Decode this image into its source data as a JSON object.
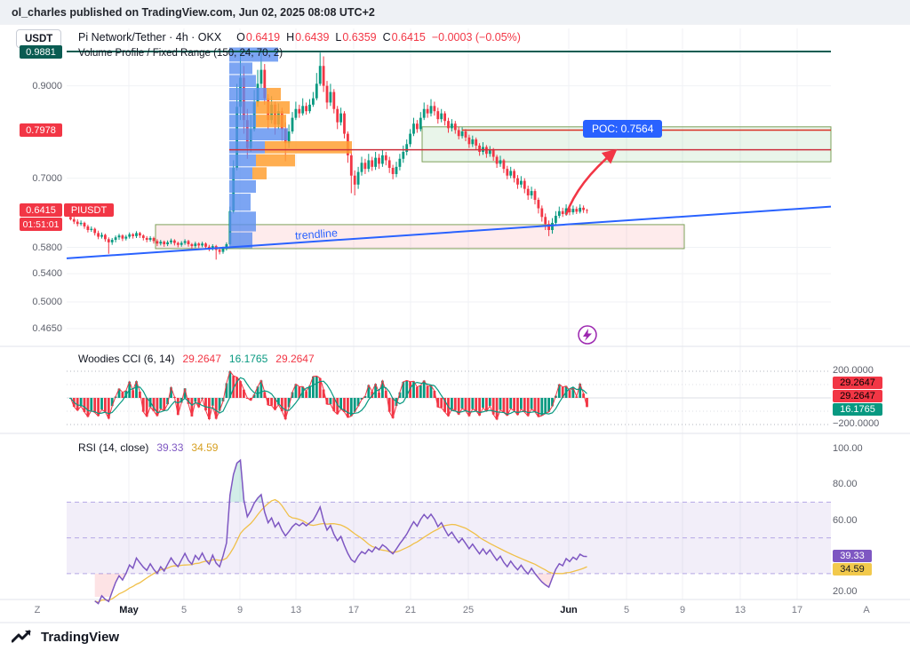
{
  "publish_bar": {
    "text": "ol_charles published on TradingView.com, Jun 02, 2025 08:08 UTC+2"
  },
  "toolbar": {
    "currency_button": "USDT"
  },
  "symbol_info": {
    "title": "Pi Network/Tether · 4h · OKX",
    "open_label": "O",
    "open": "0.6419",
    "high_label": "H",
    "high": "0.6439",
    "low_label": "L",
    "low": "0.6359",
    "close_label": "C",
    "close": "0.6415",
    "change": "−0.0003 (−0.05%)"
  },
  "indicators": {
    "volume_profile_label": "Volume Profile / Fixed Range (150, 24, 70, 2)",
    "cci_label": "Woodies CCI (6, 14)",
    "cci_values": [
      "29.2647",
      "16.1765",
      "29.2647"
    ],
    "rsi_label": "RSI (14, close)",
    "rsi_values": [
      "39.33",
      "34.59"
    ]
  },
  "price_scale": {
    "badges": {
      "high_line": "0.9881",
      "resistance": "0.7978",
      "last_price": "0.6415",
      "symbol": "PIUSDT",
      "countdown": "01:51:01"
    }
  },
  "cci_scale": {
    "top": "200.0000",
    "bottom": "−200.0000",
    "badges": [
      "29.2647",
      "29.2647",
      "16.1765"
    ]
  },
  "rsi_scale": {
    "badge_rsi": "39.33",
    "badge_ma": "34.59"
  },
  "time_axis_edges": {
    "left": "Z",
    "right": "A"
  },
  "drawings": {
    "poc_label": "POC: 0.7564",
    "trendline_label": "trendline"
  },
  "footer": {
    "brand": "TradingView"
  },
  "colors": {
    "up": "#089981",
    "down": "#f23645",
    "accent_blue": "#2962ff",
    "vp_blue": "rgba(91,143,240,0.8)",
    "vp_orange": "rgba(255,160,51,0.85)",
    "ath_badge": "#0a5c52",
    "rsi_purple": "#7e57c2",
    "rsi_ma_yellow": "#f0c04a",
    "zone_green_fill": "rgba(76,175,80,0.12)",
    "zone_red_fill": "rgba(242,54,69,0.10)",
    "zone_border": "#7da05a"
  },
  "chart_data": {
    "type": "candlestick",
    "title": "Pi Network/Tether",
    "symbol": "PIUSDT",
    "interval": "4h",
    "exchange": "OKX",
    "last": {
      "open": 0.6419,
      "high": 0.6439,
      "low": 0.6359,
      "close": 0.6415,
      "change": -0.0003,
      "change_pct": -0.05
    },
    "price_axis": {
      "ticks": [
        "0.9000",
        "0.7000",
        "0.5800",
        "0.5400",
        "0.5000",
        "0.4650"
      ],
      "scale": "log",
      "visible_range": [
        0.465,
        0.9881
      ]
    },
    "x_axis": {
      "labels": [
        "May",
        "5",
        "9",
        "13",
        "17",
        "21",
        "25",
        "Jun",
        "5",
        "9",
        "13",
        "17"
      ]
    },
    "levels": {
      "ath_line": 0.9881,
      "resistance_line": 0.7978,
      "poc_line": 0.7564
    },
    "zones": {
      "supply": {
        "price_top": 0.805,
        "price_bottom": 0.732
      },
      "demand": {
        "price_top": 0.617,
        "price_bottom": 0.578
      }
    },
    "trendline": {
      "from_price": 0.563,
      "to_price": 0.648
    },
    "volume_profile_rows": [
      [
        1.0,
        0.96,
        55,
        0
      ],
      [
        0.96,
        0.928,
        26,
        0
      ],
      [
        0.928,
        0.896,
        30,
        0
      ],
      [
        0.896,
        0.864,
        42,
        16
      ],
      [
        0.864,
        0.833,
        30,
        38
      ],
      [
        0.833,
        0.803,
        30,
        34
      ],
      [
        0.803,
        0.775,
        66,
        0
      ],
      [
        0.775,
        0.748,
        40,
        98
      ],
      [
        0.748,
        0.722,
        30,
        44
      ],
      [
        0.722,
        0.697,
        26,
        16
      ],
      [
        0.697,
        0.672,
        30,
        0
      ],
      [
        0.672,
        0.64,
        24,
        0
      ],
      [
        0.64,
        0.605,
        30,
        0
      ],
      [
        0.605,
        0.578,
        26,
        0
      ]
    ],
    "candles": [
      [
        0.63,
        0.634,
        0.624,
        0.626
      ],
      [
        0.626,
        0.63,
        0.618,
        0.622
      ],
      [
        0.622,
        0.626,
        0.614,
        0.618
      ],
      [
        0.618,
        0.624,
        0.615,
        0.62
      ],
      [
        0.62,
        0.622,
        0.61,
        0.614
      ],
      [
        0.614,
        0.617,
        0.604,
        0.608
      ],
      [
        0.608,
        0.614,
        0.605,
        0.61
      ],
      [
        0.61,
        0.612,
        0.599,
        0.603
      ],
      [
        0.603,
        0.607,
        0.593,
        0.597
      ],
      [
        0.597,
        0.604,
        0.594,
        0.6
      ],
      [
        0.6,
        0.602,
        0.589,
        0.593
      ],
      [
        0.593,
        0.596,
        0.57,
        0.588
      ],
      [
        0.588,
        0.595,
        0.584,
        0.592
      ],
      [
        0.592,
        0.599,
        0.588,
        0.596
      ],
      [
        0.596,
        0.602,
        0.592,
        0.599
      ],
      [
        0.599,
        0.601,
        0.59,
        0.594
      ],
      [
        0.594,
        0.6,
        0.591,
        0.597
      ],
      [
        0.597,
        0.604,
        0.594,
        0.601
      ],
      [
        0.601,
        0.603,
        0.594,
        0.598
      ],
      [
        0.598,
        0.606,
        0.595,
        0.603
      ],
      [
        0.603,
        0.605,
        0.595,
        0.599
      ],
      [
        0.599,
        0.601,
        0.591,
        0.595
      ],
      [
        0.595,
        0.598,
        0.588,
        0.592
      ],
      [
        0.592,
        0.598,
        0.589,
        0.595
      ],
      [
        0.595,
        0.597,
        0.586,
        0.59
      ],
      [
        0.59,
        0.593,
        0.582,
        0.586
      ],
      [
        0.586,
        0.592,
        0.583,
        0.589
      ],
      [
        0.589,
        0.591,
        0.581,
        0.585
      ],
      [
        0.585,
        0.591,
        0.582,
        0.588
      ],
      [
        0.588,
        0.594,
        0.585,
        0.591
      ],
      [
        0.591,
        0.593,
        0.583,
        0.587
      ],
      [
        0.587,
        0.589,
        0.58,
        0.584
      ],
      [
        0.584,
        0.59,
        0.581,
        0.587
      ],
      [
        0.587,
        0.593,
        0.584,
        0.59
      ],
      [
        0.59,
        0.592,
        0.581,
        0.585
      ],
      [
        0.585,
        0.587,
        0.578,
        0.582
      ],
      [
        0.582,
        0.589,
        0.579,
        0.586
      ],
      [
        0.586,
        0.588,
        0.579,
        0.583
      ],
      [
        0.583,
        0.589,
        0.58,
        0.586
      ],
      [
        0.586,
        0.588,
        0.577,
        0.581
      ],
      [
        0.581,
        0.584,
        0.574,
        0.578
      ],
      [
        0.578,
        0.585,
        0.575,
        0.582
      ],
      [
        0.582,
        0.584,
        0.561,
        0.576
      ],
      [
        0.576,
        0.579,
        0.569,
        0.573
      ],
      [
        0.573,
        0.581,
        0.57,
        0.578
      ],
      [
        0.578,
        0.588,
        0.575,
        0.585
      ],
      [
        0.585,
        0.648,
        0.583,
        0.64
      ],
      [
        0.64,
        0.735,
        0.636,
        0.72
      ],
      [
        0.72,
        0.905,
        0.715,
        0.85
      ],
      [
        0.85,
        0.988,
        0.82,
        0.92
      ],
      [
        0.92,
        0.95,
        0.79,
        0.82
      ],
      [
        0.82,
        0.845,
        0.738,
        0.76
      ],
      [
        0.76,
        0.832,
        0.752,
        0.8
      ],
      [
        0.8,
        0.89,
        0.795,
        0.86
      ],
      [
        0.86,
        0.94,
        0.85,
        0.905
      ],
      [
        0.905,
        0.988,
        0.895,
        0.94
      ],
      [
        0.94,
        0.955,
        0.855,
        0.87
      ],
      [
        0.87,
        0.88,
        0.8,
        0.82
      ],
      [
        0.82,
        0.875,
        0.812,
        0.855
      ],
      [
        0.855,
        0.862,
        0.788,
        0.81
      ],
      [
        0.81,
        0.858,
        0.8,
        0.84
      ],
      [
        0.84,
        0.848,
        0.775,
        0.8
      ],
      [
        0.8,
        0.815,
        0.733,
        0.77
      ],
      [
        0.77,
        0.81,
        0.76,
        0.795
      ],
      [
        0.795,
        0.838,
        0.79,
        0.825
      ],
      [
        0.825,
        0.862,
        0.82,
        0.845
      ],
      [
        0.845,
        0.855,
        0.825,
        0.835
      ],
      [
        0.835,
        0.87,
        0.83,
        0.852
      ],
      [
        0.852,
        0.86,
        0.832,
        0.84
      ],
      [
        0.84,
        0.868,
        0.835,
        0.855
      ],
      [
        0.855,
        0.885,
        0.85,
        0.87
      ],
      [
        0.87,
        0.932,
        0.865,
        0.905
      ],
      [
        0.905,
        0.985,
        0.9,
        0.95
      ],
      [
        0.95,
        0.975,
        0.885,
        0.9
      ],
      [
        0.9,
        0.912,
        0.845,
        0.86
      ],
      [
        0.86,
        0.905,
        0.852,
        0.885
      ],
      [
        0.885,
        0.892,
        0.835,
        0.845
      ],
      [
        0.845,
        0.852,
        0.8,
        0.815
      ],
      [
        0.815,
        0.848,
        0.808,
        0.835
      ],
      [
        0.835,
        0.84,
        0.78,
        0.79
      ],
      [
        0.79,
        0.795,
        0.73,
        0.745
      ],
      [
        0.745,
        0.752,
        0.672,
        0.705
      ],
      [
        0.705,
        0.715,
        0.668,
        0.688
      ],
      [
        0.688,
        0.722,
        0.68,
        0.712
      ],
      [
        0.712,
        0.742,
        0.705,
        0.73
      ],
      [
        0.73,
        0.738,
        0.708,
        0.718
      ],
      [
        0.718,
        0.748,
        0.712,
        0.735
      ],
      [
        0.735,
        0.742,
        0.714,
        0.722
      ],
      [
        0.722,
        0.752,
        0.716,
        0.74
      ],
      [
        0.74,
        0.748,
        0.718,
        0.728
      ],
      [
        0.728,
        0.756,
        0.722,
        0.745
      ],
      [
        0.745,
        0.752,
        0.725,
        0.735
      ],
      [
        0.735,
        0.742,
        0.71,
        0.72
      ],
      [
        0.72,
        0.726,
        0.698,
        0.708
      ],
      [
        0.708,
        0.732,
        0.702,
        0.722
      ],
      [
        0.722,
        0.748,
        0.715,
        0.738
      ],
      [
        0.738,
        0.765,
        0.73,
        0.752
      ],
      [
        0.752,
        0.778,
        0.745,
        0.768
      ],
      [
        0.768,
        0.8,
        0.762,
        0.79
      ],
      [
        0.79,
        0.825,
        0.785,
        0.812
      ],
      [
        0.812,
        0.82,
        0.792,
        0.8
      ],
      [
        0.8,
        0.838,
        0.795,
        0.825
      ],
      [
        0.825,
        0.86,
        0.82,
        0.845
      ],
      [
        0.845,
        0.855,
        0.825,
        0.835
      ],
      [
        0.835,
        0.868,
        0.828,
        0.852
      ],
      [
        0.852,
        0.862,
        0.83,
        0.84
      ],
      [
        0.84,
        0.848,
        0.812,
        0.822
      ],
      [
        0.822,
        0.845,
        0.815,
        0.835
      ],
      [
        0.835,
        0.84,
        0.808,
        0.818
      ],
      [
        0.818,
        0.825,
        0.792,
        0.802
      ],
      [
        0.802,
        0.822,
        0.795,
        0.812
      ],
      [
        0.812,
        0.818,
        0.79,
        0.798
      ],
      [
        0.798,
        0.805,
        0.778,
        0.785
      ],
      [
        0.785,
        0.804,
        0.78,
        0.795
      ],
      [
        0.795,
        0.8,
        0.774,
        0.782
      ],
      [
        0.782,
        0.788,
        0.76,
        0.768
      ],
      [
        0.768,
        0.786,
        0.762,
        0.778
      ],
      [
        0.778,
        0.782,
        0.756,
        0.765
      ],
      [
        0.765,
        0.77,
        0.744,
        0.752
      ],
      [
        0.752,
        0.772,
        0.746,
        0.762
      ],
      [
        0.762,
        0.766,
        0.74,
        0.748
      ],
      [
        0.748,
        0.764,
        0.742,
        0.756
      ],
      [
        0.756,
        0.76,
        0.734,
        0.742
      ],
      [
        0.742,
        0.746,
        0.72,
        0.728
      ],
      [
        0.728,
        0.744,
        0.722,
        0.735
      ],
      [
        0.735,
        0.738,
        0.71,
        0.718
      ],
      [
        0.718,
        0.724,
        0.698,
        0.705
      ],
      [
        0.705,
        0.722,
        0.7,
        0.714
      ],
      [
        0.714,
        0.718,
        0.692,
        0.7
      ],
      [
        0.7,
        0.706,
        0.68,
        0.688
      ],
      [
        0.688,
        0.704,
        0.682,
        0.695
      ],
      [
        0.695,
        0.7,
        0.672,
        0.68
      ],
      [
        0.68,
        0.686,
        0.66,
        0.668
      ],
      [
        0.668,
        0.684,
        0.662,
        0.676
      ],
      [
        0.676,
        0.68,
        0.652,
        0.66
      ],
      [
        0.66,
        0.664,
        0.636,
        0.645
      ],
      [
        0.645,
        0.65,
        0.622,
        0.63
      ],
      [
        0.63,
        0.636,
        0.608,
        0.618
      ],
      [
        0.618,
        0.624,
        0.598,
        0.608
      ],
      [
        0.608,
        0.628,
        0.602,
        0.62
      ],
      [
        0.62,
        0.64,
        0.615,
        0.632
      ],
      [
        0.632,
        0.648,
        0.628,
        0.64
      ],
      [
        0.64,
        0.646,
        0.63,
        0.635
      ],
      [
        0.635,
        0.652,
        0.632,
        0.645
      ],
      [
        0.645,
        0.65,
        0.633,
        0.638
      ],
      [
        0.638,
        0.65,
        0.634,
        0.644
      ],
      [
        0.644,
        0.648,
        0.635,
        0.639
      ],
      [
        0.639,
        0.652,
        0.636,
        0.646
      ],
      [
        0.646,
        0.65,
        0.637,
        0.642
      ],
      [
        0.6419,
        0.6439,
        0.6359,
        0.6415
      ]
    ],
    "cci_panel": {
      "name": "Woodies CCI (6, 14)",
      "values_last": [
        29.2647,
        16.1765,
        29.2647
      ],
      "guides": [
        200,
        100,
        0,
        -100,
        -200
      ],
      "range": [
        -250,
        250
      ]
    },
    "rsi_panel": {
      "name": "RSI (14, close)",
      "last": 39.33,
      "ma_last": 34.59,
      "bands": [
        70,
        50,
        30
      ],
      "ticks": [
        "100.00",
        "80.00",
        "60.00",
        "20.00"
      ],
      "tick_values": [
        100,
        80,
        60,
        20
      ],
      "range": [
        0,
        100
      ]
    }
  }
}
